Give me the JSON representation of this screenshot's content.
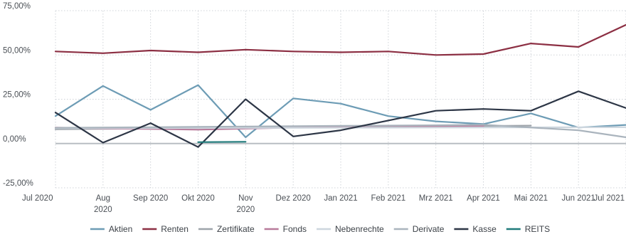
{
  "chart_data": {
    "type": "line",
    "categories": [
      [
        "Jul 2020"
      ],
      [
        "Aug",
        "2020"
      ],
      [
        "Sep 2020"
      ],
      [
        "Okt 2020"
      ],
      [
        "Nov",
        "2020"
      ],
      [
        "Dez 2020"
      ],
      [
        "Jan 2021"
      ],
      [
        "Feb 2021"
      ],
      [
        "Mrz 2021"
      ],
      [
        "Apr 2021"
      ],
      [
        "Mai 2021"
      ],
      [
        "Jun 2021"
      ],
      [
        "Jul 2021"
      ]
    ],
    "y_ticks": [
      "75,00%",
      "50,00%",
      "25,00%",
      "0,00%",
      "-25,00%"
    ],
    "y_tick_values": [
      75,
      50,
      25,
      0,
      -25
    ],
    "ylim": [
      -25,
      75
    ],
    "grid": true,
    "legend_position": "bottom",
    "series": [
      {
        "name": "Aktien",
        "color": "#6d9cb5",
        "points": [
          [
            0,
            15.5
          ],
          [
            1,
            32.5
          ],
          [
            2,
            19
          ],
          [
            3,
            33
          ],
          [
            4,
            3.5
          ],
          [
            5,
            25.5
          ],
          [
            6,
            22.5
          ],
          [
            7,
            15.5
          ],
          [
            8,
            12.5
          ],
          [
            9,
            11
          ],
          [
            10,
            17
          ],
          [
            11,
            9
          ],
          [
            12,
            10.5
          ]
        ]
      },
      {
        "name": "Renten",
        "color": "#8c2f43",
        "points": [
          [
            0,
            52
          ],
          [
            1,
            51
          ],
          [
            2,
            52.5
          ],
          [
            3,
            51.5
          ],
          [
            4,
            53
          ],
          [
            5,
            52
          ],
          [
            6,
            51.5
          ],
          [
            7,
            52
          ],
          [
            8,
            50
          ],
          [
            9,
            50.5
          ],
          [
            10,
            56.5
          ],
          [
            11,
            54.5
          ],
          [
            12,
            67
          ]
        ]
      },
      {
        "name": "Zertifikate",
        "color": "#9ea4aa",
        "points": [
          [
            0,
            8
          ],
          [
            1,
            8.3
          ],
          [
            2,
            8.5
          ],
          [
            3,
            8.7
          ],
          [
            4,
            8.9
          ],
          [
            5,
            9.1
          ],
          [
            6,
            9.3
          ],
          [
            7,
            9.5
          ],
          [
            8,
            9.7
          ],
          [
            9,
            9.9
          ],
          [
            10,
            10.1
          ]
        ]
      },
      {
        "name": "Fonds",
        "color": "#b87a9a",
        "points": [
          [
            0,
            9
          ],
          [
            1,
            8.5
          ],
          [
            2,
            8.2
          ],
          [
            3,
            7.8
          ],
          [
            4,
            8.4
          ],
          [
            5,
            9
          ],
          [
            6,
            9.5
          ],
          [
            7,
            10
          ],
          [
            8,
            9.5
          ],
          [
            9,
            9.8
          ]
        ]
      },
      {
        "name": "Nebenrechte",
        "color": "#cdd6de",
        "points": [
          [
            0,
            8.6
          ],
          [
            4,
            8.8
          ],
          [
            8,
            9
          ],
          [
            12,
            9.2
          ]
        ]
      },
      {
        "name": "Derivate",
        "color": "#aab4bd",
        "points": [
          [
            0,
            8.9
          ],
          [
            2,
            9.2
          ],
          [
            4,
            9.6
          ],
          [
            6,
            10
          ],
          [
            8,
            10.3
          ],
          [
            9,
            10.6
          ],
          [
            10,
            9
          ],
          [
            11,
            7.5
          ],
          [
            12,
            3.5
          ]
        ]
      },
      {
        "name": "Kasse",
        "color": "#2d3646",
        "points": [
          [
            0,
            17.5
          ],
          [
            1,
            0.5
          ],
          [
            2,
            11.5
          ],
          [
            3,
            -2
          ],
          [
            4,
            25
          ],
          [
            5,
            4
          ],
          [
            6,
            7.5
          ],
          [
            7,
            13
          ],
          [
            8,
            18.5
          ],
          [
            9,
            19.5
          ],
          [
            10,
            18.5
          ],
          [
            11,
            29.5
          ],
          [
            12,
            20
          ]
        ]
      },
      {
        "name": "REITS",
        "color": "#1f7a7a",
        "points": [
          [
            3,
            0.8
          ],
          [
            4,
            1
          ]
        ]
      }
    ],
    "zero_line_color": "#b9bec3"
  },
  "legend": [
    {
      "label": "Aktien",
      "color": "#6d9cb5"
    },
    {
      "label": "Renten",
      "color": "#8c2f43"
    },
    {
      "label": "Zertifikate",
      "color": "#9ea4aa"
    },
    {
      "label": "Fonds",
      "color": "#b87a9a"
    },
    {
      "label": "Nebenrechte",
      "color": "#cdd6de"
    },
    {
      "label": "Derivate",
      "color": "#aab4bd"
    },
    {
      "label": "Kasse",
      "color": "#2d3646"
    },
    {
      "label": "REITS",
      "color": "#1f7a7a"
    }
  ]
}
